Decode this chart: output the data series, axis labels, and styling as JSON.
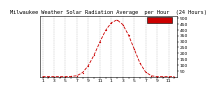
{
  "title": "Milwaukee Weather Solar Radiation Average  per Hour  (24 Hours)",
  "hours": [
    0,
    1,
    2,
    3,
    4,
    5,
    6,
    7,
    8,
    9,
    10,
    11,
    12,
    13,
    14,
    15,
    16,
    17,
    18,
    19,
    20,
    21,
    22,
    23
  ],
  "solar_values": [
    0,
    0,
    0,
    0,
    0,
    2,
    8,
    35,
    95,
    185,
    295,
    395,
    460,
    485,
    445,
    355,
    235,
    115,
    38,
    7,
    0,
    0,
    0,
    0
  ],
  "line_color": "#cc0000",
  "linestyle": "--",
  "bg_color": "#ffffff",
  "grid_color": "#999999",
  "legend_color": "#cc0000",
  "ylim": [
    0,
    520
  ],
  "ytick_vals": [
    50,
    100,
    150,
    200,
    250,
    300,
    350,
    400,
    450,
    500
  ],
  "xtick_positions": [
    0,
    1,
    2,
    3,
    4,
    5,
    6,
    7,
    8,
    9,
    10,
    11,
    12,
    13,
    14,
    15,
    16,
    17,
    18,
    19,
    20,
    21,
    22,
    23
  ],
  "xtick_labels": [
    "1",
    "",
    "3",
    "",
    "5",
    "",
    "7",
    "",
    "9",
    "",
    "11",
    "",
    "1",
    "",
    "3",
    "",
    "5",
    "",
    "7",
    "",
    "9",
    "",
    "11",
    ""
  ],
  "title_fontsize": 3.8,
  "tick_fontsize": 3.2
}
